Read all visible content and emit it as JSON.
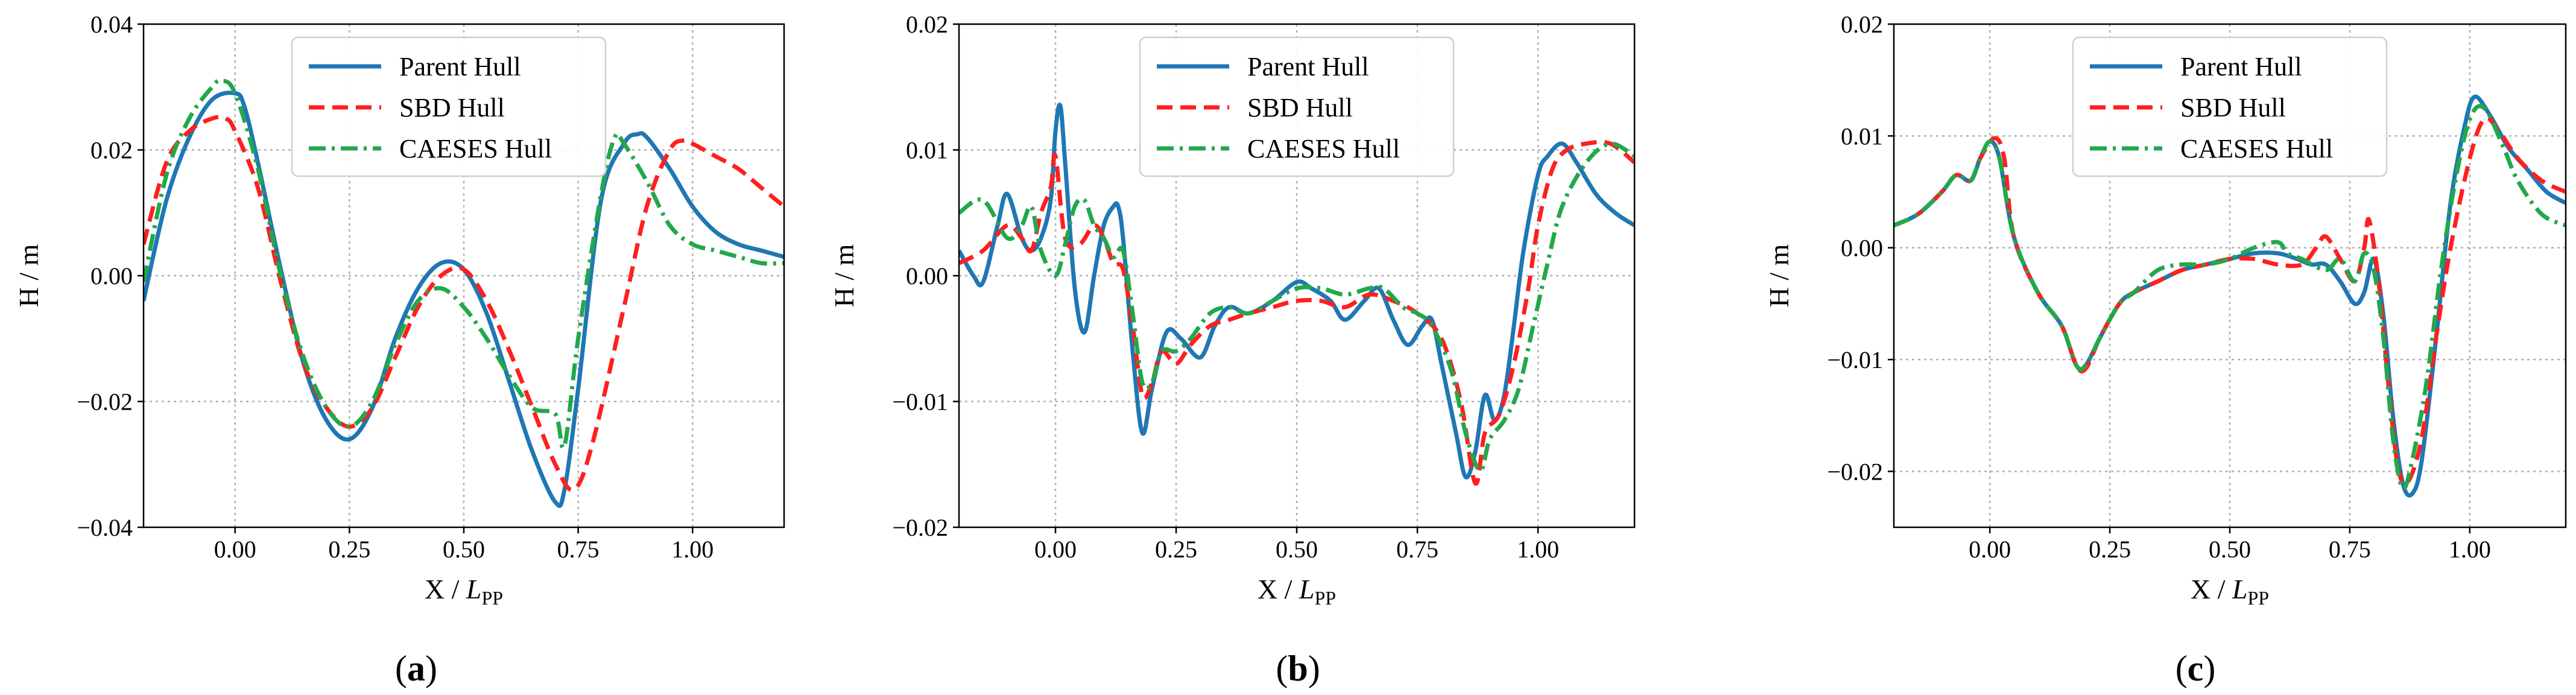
{
  "chart_data": [
    {
      "type": "line",
      "caption_letter": "a",
      "xlabel_main": "X / ",
      "xlabel_italic": "L",
      "xlabel_sub": "PP",
      "ylabel": "H / m",
      "xlim": [
        -0.2,
        1.2
      ],
      "ylim": [
        -0.04,
        0.04
      ],
      "xticks": [
        0.0,
        0.25,
        0.5,
        0.75,
        1.0
      ],
      "xtick_labels": [
        "0.00",
        "0.25",
        "0.50",
        "0.75",
        "1.00"
      ],
      "yticks": [
        -0.04,
        -0.02,
        0.0,
        0.02,
        0.04
      ],
      "ytick_labels": [
        "−0.04",
        "−0.02",
        "0.00",
        "0.02",
        "0.04"
      ],
      "legend_position": "top-center",
      "series": [
        {
          "name": "Parent Hull",
          "color": "#1f77b4",
          "style": "solid",
          "x": [
            -0.2,
            -0.15,
            -0.1,
            -0.05,
            0.0,
            0.02,
            0.05,
            0.1,
            0.15,
            0.2,
            0.25,
            0.3,
            0.35,
            0.4,
            0.45,
            0.5,
            0.55,
            0.6,
            0.65,
            0.7,
            0.72,
            0.75,
            0.8,
            0.85,
            0.88,
            0.9,
            0.95,
            1.0,
            1.05,
            1.1,
            1.15,
            1.2
          ],
          "y": [
            -0.004,
            0.012,
            0.022,
            0.028,
            0.029,
            0.027,
            0.018,
            0.001,
            -0.014,
            -0.023,
            -0.026,
            -0.021,
            -0.01,
            -0.002,
            0.002,
            0.001,
            -0.006,
            -0.017,
            -0.028,
            -0.036,
            -0.034,
            -0.018,
            0.012,
            0.021,
            0.0225,
            0.022,
            0.017,
            0.011,
            0.007,
            0.005,
            0.004,
            0.003
          ]
        },
        {
          "name": "SBD Hull",
          "color": "#ff1f1f",
          "style": "dashed",
          "x": [
            -0.2,
            -0.15,
            -0.1,
            -0.05,
            -0.02,
            0.0,
            0.05,
            0.1,
            0.15,
            0.2,
            0.25,
            0.3,
            0.35,
            0.4,
            0.45,
            0.5,
            0.55,
            0.6,
            0.65,
            0.7,
            0.74,
            0.78,
            0.85,
            0.9,
            0.95,
            0.98,
            1.0,
            1.05,
            1.1,
            1.15,
            1.2
          ],
          "y": [
            0.005,
            0.018,
            0.023,
            0.025,
            0.025,
            0.023,
            0.014,
            -0.001,
            -0.014,
            -0.021,
            -0.024,
            -0.021,
            -0.013,
            -0.005,
            0.0,
            0.001,
            -0.004,
            -0.012,
            -0.021,
            -0.03,
            -0.034,
            -0.027,
            -0.005,
            0.011,
            0.02,
            0.0215,
            0.021,
            0.019,
            0.017,
            0.014,
            0.011
          ]
        },
        {
          "name": "CAESES Hull",
          "color": "#22a84b",
          "style": "dashdot",
          "x": [
            -0.2,
            -0.15,
            -0.1,
            -0.05,
            -0.03,
            0.0,
            0.05,
            0.1,
            0.15,
            0.2,
            0.25,
            0.3,
            0.35,
            0.4,
            0.45,
            0.5,
            0.55,
            0.6,
            0.65,
            0.7,
            0.72,
            0.75,
            0.8,
            0.83,
            0.85,
            0.9,
            0.95,
            1.0,
            1.05,
            1.1,
            1.15,
            1.2
          ],
          "y": [
            -0.001,
            0.016,
            0.025,
            0.03,
            0.031,
            0.029,
            0.017,
            0.0,
            -0.013,
            -0.021,
            -0.024,
            -0.02,
            -0.011,
            -0.004,
            -0.002,
            -0.005,
            -0.01,
            -0.016,
            -0.021,
            -0.022,
            -0.027,
            -0.01,
            0.013,
            0.022,
            0.021,
            0.015,
            0.008,
            0.005,
            0.004,
            0.003,
            0.002,
            0.002
          ]
        }
      ]
    },
    {
      "type": "line",
      "caption_letter": "b",
      "xlabel_main": "X / ",
      "xlabel_italic": "L",
      "xlabel_sub": "PP",
      "ylabel": "H / m",
      "xlim": [
        -0.2,
        1.2
      ],
      "ylim": [
        -0.02,
        0.02
      ],
      "xticks": [
        0.0,
        0.25,
        0.5,
        0.75,
        1.0
      ],
      "xtick_labels": [
        "0.00",
        "0.25",
        "0.50",
        "0.75",
        "1.00"
      ],
      "yticks": [
        -0.02,
        -0.01,
        0.0,
        0.01,
        0.02
      ],
      "ytick_labels": [
        "−0.02",
        "−0.01",
        "0.00",
        "0.01",
        "0.02"
      ],
      "legend_position": "top-center",
      "series": [
        {
          "name": "Parent Hull",
          "color": "#1f77b4",
          "style": "solid",
          "x": [
            -0.2,
            -0.17,
            -0.15,
            -0.12,
            -0.1,
            -0.07,
            -0.05,
            -0.03,
            -0.01,
            0.0,
            0.01,
            0.02,
            0.04,
            0.06,
            0.08,
            0.1,
            0.12,
            0.13,
            0.14,
            0.16,
            0.18,
            0.2,
            0.23,
            0.26,
            0.3,
            0.33,
            0.36,
            0.4,
            0.45,
            0.5,
            0.53,
            0.57,
            0.6,
            0.64,
            0.67,
            0.7,
            0.73,
            0.76,
            0.78,
            0.8,
            0.83,
            0.85,
            0.87,
            0.89,
            0.91,
            0.93,
            0.95,
            0.97,
            1.0,
            1.02,
            1.05,
            1.08,
            1.12,
            1.16,
            1.2
          ],
          "y": [
            0.002,
            0.0,
            -0.0005,
            0.004,
            0.0065,
            0.003,
            0.002,
            0.003,
            0.006,
            0.0115,
            0.0135,
            0.009,
            -0.001,
            -0.0045,
            0.0,
            0.004,
            0.0055,
            0.0055,
            0.003,
            -0.006,
            -0.0125,
            -0.009,
            -0.0045,
            -0.005,
            -0.0065,
            -0.004,
            -0.0025,
            -0.003,
            -0.002,
            -0.0005,
            -0.001,
            -0.002,
            -0.0035,
            -0.002,
            -0.001,
            -0.0035,
            -0.0055,
            -0.004,
            -0.0035,
            -0.007,
            -0.0125,
            -0.016,
            -0.014,
            -0.0095,
            -0.0115,
            -0.0095,
            -0.004,
            0.002,
            0.008,
            0.0095,
            0.0105,
            0.009,
            0.0065,
            0.005,
            0.004
          ]
        },
        {
          "name": "SBD Hull",
          "color": "#ff1f1f",
          "style": "dashed",
          "x": [
            -0.2,
            -0.15,
            -0.1,
            -0.07,
            -0.05,
            -0.03,
            -0.01,
            0.0,
            0.02,
            0.05,
            0.08,
            0.1,
            0.12,
            0.14,
            0.16,
            0.18,
            0.2,
            0.22,
            0.25,
            0.28,
            0.32,
            0.36,
            0.4,
            0.45,
            0.5,
            0.55,
            0.6,
            0.65,
            0.7,
            0.75,
            0.8,
            0.84,
            0.87,
            0.89,
            0.92,
            0.95,
            0.98,
            1.0,
            1.03,
            1.06,
            1.1,
            1.15,
            1.2
          ],
          "y": [
            0.001,
            0.002,
            0.004,
            0.003,
            0.002,
            0.005,
            0.007,
            0.0095,
            0.003,
            0.0025,
            0.004,
            0.003,
            0.001,
            0.0005,
            -0.004,
            -0.0095,
            -0.0085,
            -0.006,
            -0.007,
            -0.0055,
            -0.004,
            -0.0035,
            -0.003,
            -0.0025,
            -0.002,
            -0.002,
            -0.0025,
            -0.0015,
            -0.002,
            -0.003,
            -0.005,
            -0.01,
            -0.0165,
            -0.0125,
            -0.011,
            -0.007,
            -0.001,
            0.004,
            0.0085,
            0.01,
            0.0105,
            0.0105,
            0.009
          ]
        },
        {
          "name": "CAESES Hull",
          "color": "#22a84b",
          "style": "dashdot",
          "x": [
            -0.2,
            -0.15,
            -0.1,
            -0.07,
            -0.05,
            -0.03,
            0.0,
            0.02,
            0.04,
            0.06,
            0.08,
            0.1,
            0.12,
            0.14,
            0.16,
            0.18,
            0.2,
            0.22,
            0.25,
            0.28,
            0.32,
            0.36,
            0.4,
            0.45,
            0.5,
            0.55,
            0.6,
            0.65,
            0.68,
            0.72,
            0.75,
            0.78,
            0.82,
            0.85,
            0.88,
            0.9,
            0.93,
            0.96,
            0.99,
            1.02,
            1.05,
            1.1,
            1.15,
            1.2
          ],
          "y": [
            0.005,
            0.006,
            0.003,
            0.004,
            0.0055,
            0.002,
            0.0,
            0.0025,
            0.0055,
            0.006,
            0.004,
            0.003,
            0.0015,
            0.002,
            -0.003,
            -0.0085,
            -0.0085,
            -0.006,
            -0.006,
            -0.005,
            -0.003,
            -0.0025,
            -0.003,
            -0.002,
            -0.001,
            -0.001,
            -0.0015,
            -0.001,
            -0.001,
            -0.0025,
            -0.003,
            -0.004,
            -0.0075,
            -0.0125,
            -0.0155,
            -0.013,
            -0.0115,
            -0.009,
            -0.004,
            0.001,
            0.0055,
            0.009,
            0.0105,
            0.0095
          ]
        }
      ]
    },
    {
      "type": "line",
      "caption_letter": "c",
      "xlabel_main": "X / ",
      "xlabel_italic": "L",
      "xlabel_sub": "PP",
      "ylabel": "H / m",
      "xlim": [
        -0.2,
        1.2
      ],
      "ylim": [
        -0.025,
        0.02
      ],
      "xticks": [
        0.0,
        0.25,
        0.5,
        0.75,
        1.0
      ],
      "xtick_labels": [
        "0.00",
        "0.25",
        "0.50",
        "0.75",
        "1.00"
      ],
      "yticks": [
        -0.02,
        -0.01,
        0.0,
        0.01,
        0.02
      ],
      "ytick_labels": [
        "−0.02",
        "−0.01",
        "0.00",
        "0.01",
        "0.02"
      ],
      "legend_position": "top-center",
      "series": [
        {
          "name": "Parent Hull",
          "color": "#1f77b4",
          "style": "solid",
          "x": [
            -0.2,
            -0.15,
            -0.1,
            -0.07,
            -0.04,
            -0.02,
            0.0,
            0.02,
            0.05,
            0.1,
            0.15,
            0.18,
            0.2,
            0.23,
            0.27,
            0.3,
            0.35,
            0.4,
            0.45,
            0.5,
            0.55,
            0.6,
            0.64,
            0.67,
            0.7,
            0.73,
            0.76,
            0.78,
            0.8,
            0.82,
            0.84,
            0.86,
            0.88,
            0.9,
            0.93,
            0.96,
            0.99,
            1.01,
            1.04,
            1.08,
            1.12,
            1.16,
            1.2
          ],
          "y": [
            0.002,
            0.003,
            0.005,
            0.0065,
            0.006,
            0.008,
            0.0095,
            0.008,
            0.001,
            -0.004,
            -0.007,
            -0.0105,
            -0.0105,
            -0.008,
            -0.005,
            -0.004,
            -0.003,
            -0.002,
            -0.0015,
            -0.001,
            -0.0005,
            -0.0005,
            -0.001,
            -0.0015,
            -0.0015,
            -0.003,
            -0.005,
            -0.004,
            -0.001,
            -0.006,
            -0.015,
            -0.021,
            -0.022,
            -0.019,
            -0.008,
            0.004,
            0.011,
            0.0135,
            0.012,
            0.009,
            0.007,
            0.005,
            0.004
          ]
        },
        {
          "name": "SBD Hull",
          "color": "#ff1f1f",
          "style": "dashed",
          "x": [
            -0.2,
            -0.15,
            -0.1,
            -0.07,
            -0.04,
            -0.02,
            0.01,
            0.03,
            0.05,
            0.1,
            0.15,
            0.18,
            0.2,
            0.23,
            0.27,
            0.3,
            0.35,
            0.4,
            0.45,
            0.5,
            0.55,
            0.6,
            0.65,
            0.68,
            0.7,
            0.73,
            0.76,
            0.78,
            0.79,
            0.81,
            0.83,
            0.85,
            0.87,
            0.9,
            0.93,
            0.96,
            1.0,
            1.03,
            1.06,
            1.1,
            1.15,
            1.2
          ],
          "y": [
            0.002,
            0.003,
            0.005,
            0.0065,
            0.006,
            0.008,
            0.0098,
            0.008,
            0.001,
            -0.004,
            -0.007,
            -0.0105,
            -0.0108,
            -0.008,
            -0.005,
            -0.004,
            -0.003,
            -0.002,
            -0.0015,
            -0.001,
            -0.001,
            -0.0015,
            -0.0015,
            0.0,
            0.001,
            -0.001,
            -0.003,
            0.0,
            0.0025,
            -0.003,
            -0.012,
            -0.0195,
            -0.021,
            -0.017,
            -0.008,
            0.0,
            0.008,
            0.0115,
            0.0105,
            0.008,
            0.006,
            0.005
          ]
        },
        {
          "name": "CAESES Hull",
          "color": "#22a84b",
          "style": "dashdot",
          "x": [
            -0.2,
            -0.15,
            -0.1,
            -0.07,
            -0.04,
            -0.02,
            0.0,
            0.02,
            0.05,
            0.1,
            0.15,
            0.18,
            0.2,
            0.23,
            0.27,
            0.3,
            0.35,
            0.4,
            0.45,
            0.5,
            0.55,
            0.6,
            0.62,
            0.65,
            0.7,
            0.73,
            0.76,
            0.78,
            0.8,
            0.82,
            0.84,
            0.86,
            0.88,
            0.91,
            0.94,
            0.97,
            1.0,
            1.03,
            1.07,
            1.1,
            1.15,
            1.2
          ],
          "y": [
            0.002,
            0.003,
            0.005,
            0.0065,
            0.006,
            0.008,
            0.0095,
            0.008,
            0.001,
            -0.004,
            -0.007,
            -0.0105,
            -0.0105,
            -0.008,
            -0.005,
            -0.004,
            -0.002,
            -0.0015,
            -0.0015,
            -0.001,
            0.0,
            0.0005,
            -0.0005,
            -0.001,
            -0.002,
            -0.001,
            -0.003,
            -0.0005,
            -0.002,
            -0.008,
            -0.017,
            -0.0215,
            -0.019,
            -0.012,
            -0.002,
            0.006,
            0.0115,
            0.0125,
            0.009,
            0.006,
            0.003,
            0.002
          ]
        }
      ]
    }
  ]
}
